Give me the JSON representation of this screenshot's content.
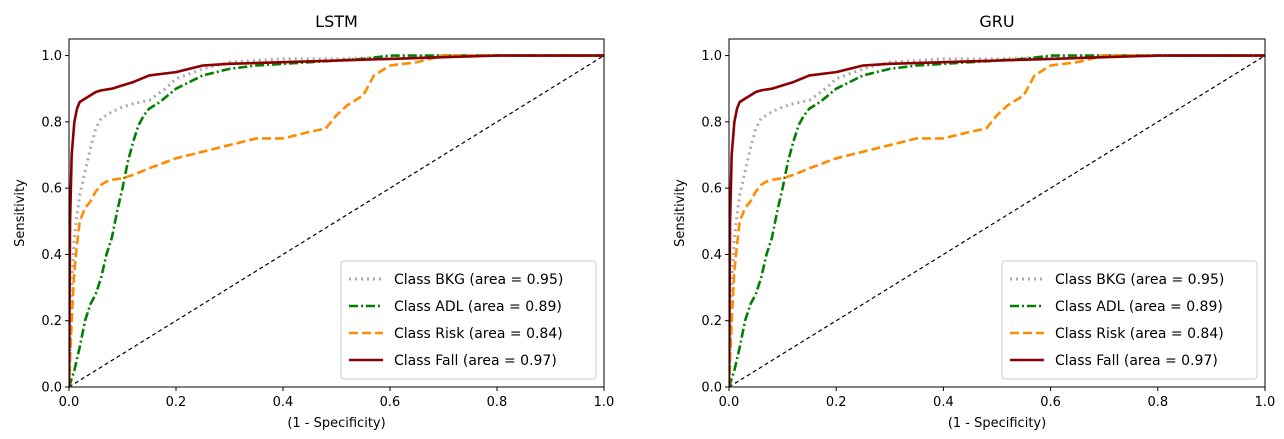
{
  "chart_data": [
    {
      "type": "line",
      "title": "LSTM",
      "xlabel": "(1 - Specificity)",
      "ylabel": "Sensitivity",
      "xlim": [
        0.0,
        1.0
      ],
      "ylim": [
        0.0,
        1.05
      ],
      "xticks": [
        "0.0",
        "0.2",
        "0.4",
        "0.6",
        "0.8",
        "1.0"
      ],
      "yticks": [
        "0.0",
        "0.2",
        "0.4",
        "0.6",
        "0.8",
        "1.0"
      ],
      "grid": false,
      "legend_position": "lower-right",
      "reference_line": {
        "x": [
          0,
          1
        ],
        "y": [
          0,
          1
        ],
        "color": "#000000",
        "style": "dashed"
      },
      "series": [
        {
          "name": "Class BKG (area = 0.95)",
          "color": "#aaaaaa",
          "style": "dotted",
          "x": [
            0.0,
            0.005,
            0.01,
            0.015,
            0.02,
            0.03,
            0.04,
            0.05,
            0.06,
            0.08,
            0.1,
            0.12,
            0.15,
            0.18,
            0.2,
            0.25,
            0.3,
            0.4,
            0.5,
            0.6,
            0.7,
            0.8,
            1.0
          ],
          "y": [
            0.0,
            0.3,
            0.45,
            0.52,
            0.58,
            0.65,
            0.72,
            0.78,
            0.81,
            0.83,
            0.845,
            0.855,
            0.865,
            0.9,
            0.93,
            0.96,
            0.98,
            0.99,
            0.99,
            0.995,
            1.0,
            1.0,
            1.0
          ]
        },
        {
          "name": "Class ADL (area = 0.89)",
          "color": "#008000",
          "style": "dashdot",
          "x": [
            0.0,
            0.01,
            0.02,
            0.03,
            0.04,
            0.05,
            0.06,
            0.07,
            0.08,
            0.09,
            0.1,
            0.11,
            0.12,
            0.13,
            0.14,
            0.15,
            0.17,
            0.2,
            0.25,
            0.3,
            0.35,
            0.4,
            0.45,
            0.5,
            0.55,
            0.6,
            0.7,
            1.0
          ],
          "y": [
            0.0,
            0.05,
            0.12,
            0.2,
            0.25,
            0.28,
            0.33,
            0.4,
            0.45,
            0.53,
            0.6,
            0.68,
            0.74,
            0.79,
            0.82,
            0.84,
            0.86,
            0.9,
            0.94,
            0.96,
            0.97,
            0.975,
            0.98,
            0.985,
            0.99,
            1.0,
            1.0,
            1.0
          ]
        },
        {
          "name": "Class Risk (area = 0.84)",
          "color": "#ff8c00",
          "style": "dashed",
          "x": [
            0.0,
            0.005,
            0.01,
            0.015,
            0.02,
            0.03,
            0.04,
            0.05,
            0.06,
            0.07,
            0.08,
            0.1,
            0.12,
            0.15,
            0.2,
            0.25,
            0.3,
            0.35,
            0.4,
            0.45,
            0.48,
            0.5,
            0.52,
            0.55,
            0.57,
            0.6,
            0.65,
            0.7,
            1.0
          ],
          "y": [
            0.0,
            0.2,
            0.35,
            0.43,
            0.5,
            0.54,
            0.56,
            0.59,
            0.61,
            0.62,
            0.625,
            0.63,
            0.64,
            0.66,
            0.69,
            0.71,
            0.73,
            0.75,
            0.75,
            0.77,
            0.78,
            0.82,
            0.85,
            0.88,
            0.94,
            0.97,
            0.98,
            1.0,
            1.0
          ]
        },
        {
          "name": "Class Fall (area = 0.97)",
          "color": "#8b0000",
          "style": "solid",
          "x": [
            0.0,
            0.002,
            0.005,
            0.008,
            0.01,
            0.015,
            0.02,
            0.03,
            0.04,
            0.05,
            0.06,
            0.08,
            0.1,
            0.12,
            0.15,
            0.2,
            0.25,
            0.3,
            0.4,
            0.5,
            0.6,
            0.7,
            0.8,
            1.0
          ],
          "y": [
            0.0,
            0.5,
            0.7,
            0.76,
            0.8,
            0.84,
            0.86,
            0.87,
            0.88,
            0.89,
            0.895,
            0.9,
            0.91,
            0.92,
            0.94,
            0.95,
            0.97,
            0.975,
            0.98,
            0.985,
            0.99,
            0.995,
            1.0,
            1.0
          ]
        }
      ]
    },
    {
      "type": "line",
      "title": "GRU",
      "xlabel": "(1 - Specificity)",
      "ylabel": "Sensitivity",
      "xlim": [
        0.0,
        1.0
      ],
      "ylim": [
        0.0,
        1.05
      ],
      "xticks": [
        "0.0",
        "0.2",
        "0.4",
        "0.6",
        "0.8",
        "1.0"
      ],
      "yticks": [
        "0.0",
        "0.2",
        "0.4",
        "0.6",
        "0.8",
        "1.0"
      ],
      "grid": false,
      "legend_position": "lower-right",
      "reference_line": {
        "x": [
          0,
          1
        ],
        "y": [
          0,
          1
        ],
        "color": "#000000",
        "style": "dashed"
      },
      "series": [
        {
          "name": "Class BKG (area = 0.95)",
          "color": "#aaaaaa",
          "style": "dotted",
          "x": [
            0.0,
            0.005,
            0.01,
            0.015,
            0.02,
            0.03,
            0.04,
            0.05,
            0.06,
            0.08,
            0.1,
            0.12,
            0.15,
            0.18,
            0.2,
            0.25,
            0.3,
            0.4,
            0.5,
            0.6,
            0.7,
            0.8,
            1.0
          ],
          "y": [
            0.0,
            0.3,
            0.45,
            0.52,
            0.58,
            0.65,
            0.72,
            0.78,
            0.81,
            0.83,
            0.845,
            0.855,
            0.865,
            0.9,
            0.93,
            0.96,
            0.98,
            0.99,
            0.99,
            0.995,
            1.0,
            1.0,
            1.0
          ]
        },
        {
          "name": "Class ADL (area = 0.89)",
          "color": "#008000",
          "style": "dashdot",
          "x": [
            0.0,
            0.01,
            0.02,
            0.03,
            0.04,
            0.05,
            0.06,
            0.07,
            0.08,
            0.09,
            0.1,
            0.11,
            0.12,
            0.13,
            0.14,
            0.15,
            0.17,
            0.2,
            0.25,
            0.3,
            0.35,
            0.4,
            0.45,
            0.5,
            0.55,
            0.6,
            0.7,
            1.0
          ],
          "y": [
            0.0,
            0.05,
            0.12,
            0.2,
            0.25,
            0.28,
            0.33,
            0.4,
            0.45,
            0.53,
            0.6,
            0.68,
            0.74,
            0.79,
            0.82,
            0.84,
            0.86,
            0.9,
            0.94,
            0.96,
            0.97,
            0.975,
            0.98,
            0.985,
            0.99,
            1.0,
            1.0,
            1.0
          ]
        },
        {
          "name": "Class Risk (area = 0.84)",
          "color": "#ff8c00",
          "style": "dashed",
          "x": [
            0.0,
            0.005,
            0.01,
            0.015,
            0.02,
            0.03,
            0.04,
            0.05,
            0.06,
            0.07,
            0.08,
            0.1,
            0.12,
            0.15,
            0.2,
            0.25,
            0.3,
            0.35,
            0.4,
            0.45,
            0.48,
            0.5,
            0.52,
            0.55,
            0.57,
            0.6,
            0.65,
            0.7,
            1.0
          ],
          "y": [
            0.0,
            0.2,
            0.35,
            0.43,
            0.5,
            0.54,
            0.56,
            0.59,
            0.61,
            0.62,
            0.625,
            0.63,
            0.64,
            0.66,
            0.69,
            0.71,
            0.73,
            0.75,
            0.75,
            0.77,
            0.78,
            0.82,
            0.85,
            0.88,
            0.94,
            0.97,
            0.98,
            1.0,
            1.0
          ]
        },
        {
          "name": "Class Fall (area = 0.97)",
          "color": "#8b0000",
          "style": "solid",
          "x": [
            0.0,
            0.002,
            0.005,
            0.008,
            0.01,
            0.015,
            0.02,
            0.03,
            0.04,
            0.05,
            0.06,
            0.08,
            0.1,
            0.12,
            0.15,
            0.2,
            0.25,
            0.3,
            0.4,
            0.5,
            0.6,
            0.7,
            0.8,
            1.0
          ],
          "y": [
            0.0,
            0.5,
            0.7,
            0.76,
            0.8,
            0.84,
            0.86,
            0.87,
            0.88,
            0.89,
            0.895,
            0.9,
            0.91,
            0.92,
            0.94,
            0.95,
            0.97,
            0.975,
            0.98,
            0.985,
            0.99,
            0.995,
            1.0,
            1.0
          ]
        }
      ]
    }
  ]
}
